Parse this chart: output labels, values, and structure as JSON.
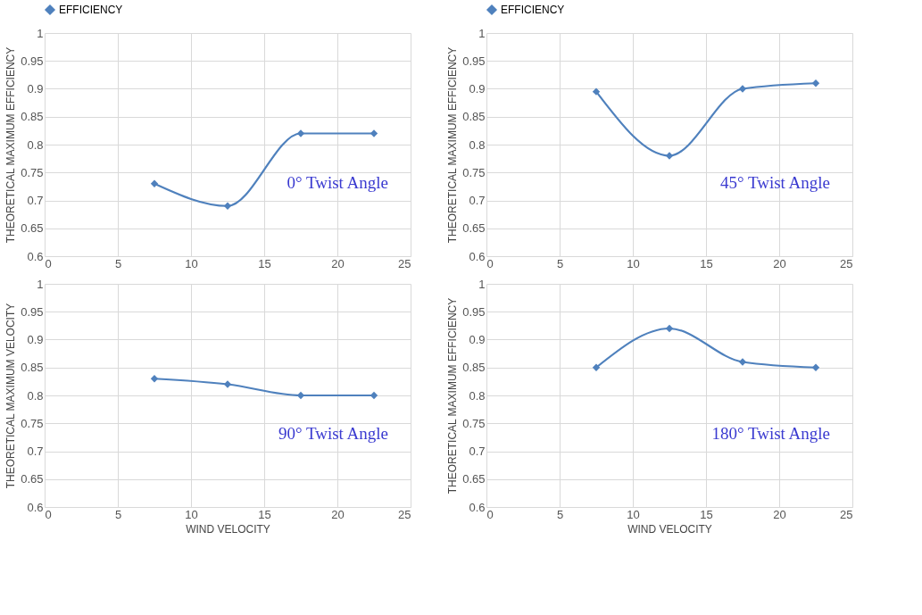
{
  "chart_data": [
    {
      "type": "line",
      "ylabel": "THEORETICAL MAXIMUM EFFICIENCY",
      "x": [
        7.5,
        12.5,
        17.5,
        22.5
      ],
      "series": [
        {
          "name": "EFFICIENCY",
          "color": "#4f81bd",
          "values": [
            0.73,
            0.69,
            0.82,
            0.82
          ]
        }
      ],
      "xlim": [
        0,
        25
      ],
      "xticks": [
        0,
        5,
        10,
        15,
        20,
        25
      ],
      "ylim": [
        0.6,
        1
      ],
      "yticks": [
        0.6,
        0.65,
        0.7,
        0.75,
        0.8,
        0.85,
        0.9,
        0.95,
        1
      ],
      "grid": true,
      "legend": "top",
      "marker": "diamond",
      "line_style": "solid",
      "annotations": [
        "0° Twist Angle"
      ]
    },
    {
      "type": "line",
      "ylabel": "THEORETICAL MAXIMUM EFFICIENCY",
      "x": [
        7.5,
        12.5,
        17.5,
        22.5
      ],
      "series": [
        {
          "name": "EFFICIENCY",
          "color": "#4f81bd",
          "values": [
            0.895,
            0.78,
            0.9,
            0.91
          ]
        }
      ],
      "xlim": [
        0,
        25
      ],
      "xticks": [
        0,
        5,
        10,
        15,
        20,
        25
      ],
      "ylim": [
        0.6,
        1
      ],
      "yticks": [
        0.6,
        0.65,
        0.7,
        0.75,
        0.8,
        0.85,
        0.9,
        0.95,
        1
      ],
      "grid": true,
      "legend": "top",
      "marker": "diamond",
      "line_style": "solid",
      "annotations": [
        "45° Twist Angle"
      ]
    },
    {
      "type": "line",
      "xlabel": "WIND VELOCITY",
      "ylabel": "THEORETICAL MAXIMUM VELOCITY",
      "x": [
        7.5,
        12.5,
        17.5,
        22.5
      ],
      "series": [
        {
          "color": "#4f81bd",
          "values": [
            0.83,
            0.82,
            0.8,
            0.8
          ]
        }
      ],
      "xlim": [
        0,
        25
      ],
      "xticks": [
        0,
        5,
        10,
        15,
        20,
        25
      ],
      "ylim": [
        0.6,
        1
      ],
      "yticks": [
        0.6,
        0.65,
        0.7,
        0.75,
        0.8,
        0.85,
        0.9,
        0.95,
        1
      ],
      "grid": true,
      "marker": "diamond",
      "line_style": "solid",
      "annotations": [
        "90° Twist Angle"
      ]
    },
    {
      "type": "line",
      "xlabel": "WIND VELOCITY",
      "ylabel": "THEORETICAL MAXIMUM EFFICIENCY",
      "x": [
        7.5,
        12.5,
        17.5,
        22.5
      ],
      "series": [
        {
          "color": "#4f81bd",
          "values": [
            0.85,
            0.92,
            0.86,
            0.85
          ]
        }
      ],
      "xlim": [
        0,
        25
      ],
      "xticks": [
        0,
        5,
        10,
        15,
        20,
        25
      ],
      "ylim": [
        0.6,
        1
      ],
      "yticks": [
        0.6,
        0.65,
        0.7,
        0.75,
        0.8,
        0.85,
        0.9,
        0.95,
        1
      ],
      "grid": true,
      "marker": "diamond",
      "line_style": "solid",
      "annotations": [
        "180° Twist Angle"
      ]
    }
  ]
}
